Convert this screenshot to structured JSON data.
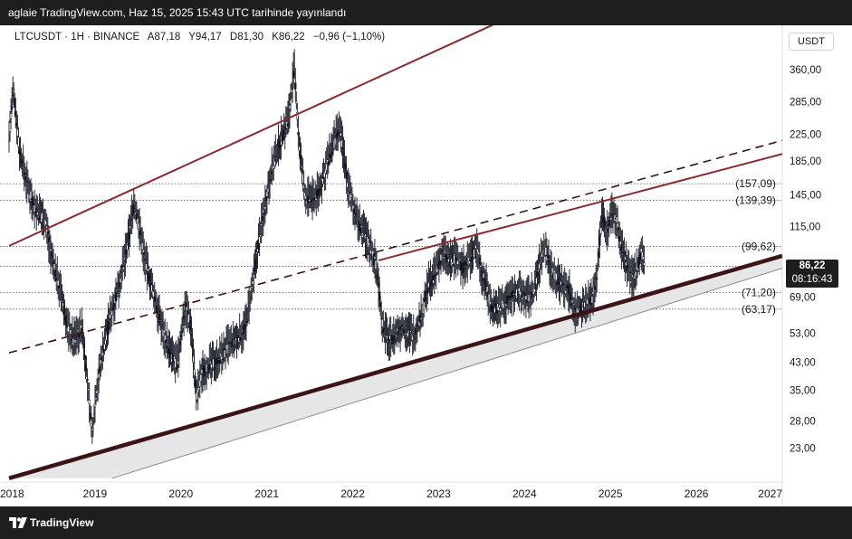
{
  "header": {
    "text": "aglaie TradingView.com, Haz 15, 2025 15:43 UTC tarihinde yayınlandı"
  },
  "legend": {
    "symbol": "LTCUSDT · 1H · BINANCE",
    "open": "A87,18",
    "high": "Y94,17",
    "low": "D81,30",
    "close": "K86,22",
    "change": "−0,96 (−1,10%)"
  },
  "currency": "USDT",
  "last_price": {
    "price": "86,22",
    "countdown": "08:16:43"
  },
  "footer": {
    "brand": "TradingView"
  },
  "colors": {
    "candle": "#131722",
    "channel": "#8b2a2e",
    "channel_dark": "#3b1416",
    "band_fill": "#e6e6e6",
    "dotted": "#555555"
  },
  "chart_data": {
    "type": "candlestick",
    "symbol": "LTCUSDT",
    "y_scale": "log",
    "ylim": [
      18,
      480
    ],
    "x_range": [
      2018.0,
      2027.0
    ],
    "x_ticks": [
      {
        "x": 2018,
        "label": "2018"
      },
      {
        "x": 2019,
        "label": "2019"
      },
      {
        "x": 2020,
        "label": "2020"
      },
      {
        "x": 2021,
        "label": "2021"
      },
      {
        "x": 2022,
        "label": "2022"
      },
      {
        "x": 2023,
        "label": "2023"
      },
      {
        "x": 2024,
        "label": "2024"
      },
      {
        "x": 2025,
        "label": "2025"
      },
      {
        "x": 2026,
        "label": "2026"
      },
      {
        "x": 2027,
        "label": "2027"
      }
    ],
    "y_ticks": [
      {
        "v": 360,
        "label": "360,00"
      },
      {
        "v": 285,
        "label": "285,00"
      },
      {
        "v": 225,
        "label": "225,00"
      },
      {
        "v": 185,
        "label": "185,00"
      },
      {
        "v": 145,
        "label": "145,00"
      },
      {
        "v": 115,
        "label": "115,00"
      },
      {
        "v": 69,
        "label": "69,00"
      },
      {
        "v": 53,
        "label": "53,00"
      },
      {
        "v": 43,
        "label": "43,00"
      },
      {
        "v": 35,
        "label": "35,00"
      },
      {
        "v": 28,
        "label": "28,00"
      },
      {
        "v": 23,
        "label": "23,00"
      }
    ],
    "levels": [
      {
        "v": 157.09,
        "label": "(157,09)"
      },
      {
        "v": 139.39,
        "label": "(139,39)"
      },
      {
        "v": 99.62,
        "label": "(99,62)"
      },
      {
        "v": 86.22,
        "label": ""
      },
      {
        "v": 71.2,
        "label": "(71,20)"
      },
      {
        "v": 63.17,
        "label": "(63,17)"
      }
    ],
    "trendlines": [
      {
        "name": "upper-channel",
        "style": "solid",
        "points": [
          [
            2018.0,
            100
          ],
          [
            2027.0,
            1300
          ]
        ]
      },
      {
        "name": "mid-dashed",
        "style": "dashed",
        "points": [
          [
            2018.0,
            46
          ],
          [
            2027.0,
            215
          ]
        ]
      },
      {
        "name": "inner-upper",
        "style": "solid",
        "points": [
          [
            2022.3,
            90
          ],
          [
            2027.0,
            195
          ]
        ]
      },
      {
        "name": "support-thick",
        "style": "solid-thick",
        "points": [
          [
            2018.0,
            18.5
          ],
          [
            2027.0,
            93
          ]
        ]
      },
      {
        "name": "support-lower",
        "style": "solid-thin",
        "points": [
          [
            2019.2,
            18.5
          ],
          [
            2027.0,
            85
          ]
        ]
      }
    ],
    "price_path": [
      [
        2018.0,
        220
      ],
      [
        2018.05,
        310
      ],
      [
        2018.12,
        200
      ],
      [
        2018.2,
        160
      ],
      [
        2018.3,
        130
      ],
      [
        2018.42,
        120
      ],
      [
        2018.5,
        90
      ],
      [
        2018.58,
        75
      ],
      [
        2018.68,
        55
      ],
      [
        2018.75,
        50
      ],
      [
        2018.85,
        55
      ],
      [
        2018.92,
        35
      ],
      [
        2018.97,
        25
      ],
      [
        2019.0,
        32
      ],
      [
        2019.08,
        45
      ],
      [
        2019.18,
        60
      ],
      [
        2019.28,
        75
      ],
      [
        2019.38,
        100
      ],
      [
        2019.45,
        135
      ],
      [
        2019.5,
        120
      ],
      [
        2019.58,
        90
      ],
      [
        2019.68,
        70
      ],
      [
        2019.78,
        55
      ],
      [
        2019.88,
        45
      ],
      [
        2019.96,
        42
      ],
      [
        2020.05,
        65
      ],
      [
        2020.12,
        55
      ],
      [
        2020.18,
        33
      ],
      [
        2020.25,
        40
      ],
      [
        2020.35,
        42
      ],
      [
        2020.45,
        44
      ],
      [
        2020.55,
        48
      ],
      [
        2020.65,
        50
      ],
      [
        2020.75,
        55
      ],
      [
        2020.82,
        70
      ],
      [
        2020.9,
        100
      ],
      [
        2020.97,
        130
      ],
      [
        2021.05,
        170
      ],
      [
        2021.15,
        210
      ],
      [
        2021.25,
        250
      ],
      [
        2021.32,
        360
      ],
      [
        2021.38,
        200
      ],
      [
        2021.45,
        140
      ],
      [
        2021.55,
        140
      ],
      [
        2021.62,
        150
      ],
      [
        2021.7,
        180
      ],
      [
        2021.78,
        210
      ],
      [
        2021.85,
        230
      ],
      [
        2021.9,
        190
      ],
      [
        2021.95,
        150
      ],
      [
        2022.05,
        120
      ],
      [
        2022.12,
        110
      ],
      [
        2022.2,
        100
      ],
      [
        2022.28,
        85
      ],
      [
        2022.35,
        55
      ],
      [
        2022.42,
        50
      ],
      [
        2022.5,
        52
      ],
      [
        2022.58,
        55
      ],
      [
        2022.65,
        53
      ],
      [
        2022.72,
        52
      ],
      [
        2022.8,
        60
      ],
      [
        2022.88,
        75
      ],
      [
        2022.95,
        80
      ],
      [
        2023.05,
        95
      ],
      [
        2023.12,
        88
      ],
      [
        2023.2,
        92
      ],
      [
        2023.28,
        85
      ],
      [
        2023.38,
        92
      ],
      [
        2023.45,
        100
      ],
      [
        2023.5,
        82
      ],
      [
        2023.55,
        75
      ],
      [
        2023.62,
        63
      ],
      [
        2023.7,
        64
      ],
      [
        2023.78,
        66
      ],
      [
        2023.86,
        70
      ],
      [
        2023.94,
        71
      ],
      [
        2024.02,
        68
      ],
      [
        2024.1,
        70
      ],
      [
        2024.18,
        88
      ],
      [
        2024.24,
        98
      ],
      [
        2024.3,
        85
      ],
      [
        2024.38,
        78
      ],
      [
        2024.45,
        74
      ],
      [
        2024.52,
        72
      ],
      [
        2024.58,
        62
      ],
      [
        2024.65,
        63
      ],
      [
        2024.72,
        66
      ],
      [
        2024.78,
        67
      ],
      [
        2024.84,
        80
      ],
      [
        2024.9,
        125
      ],
      [
        2024.96,
        110
      ],
      [
        2025.02,
        128
      ],
      [
        2025.08,
        118
      ],
      [
        2025.12,
        100
      ],
      [
        2025.18,
        88
      ],
      [
        2025.24,
        78
      ],
      [
        2025.3,
        83
      ],
      [
        2025.36,
        96
      ],
      [
        2025.4,
        86.22
      ]
    ]
  }
}
